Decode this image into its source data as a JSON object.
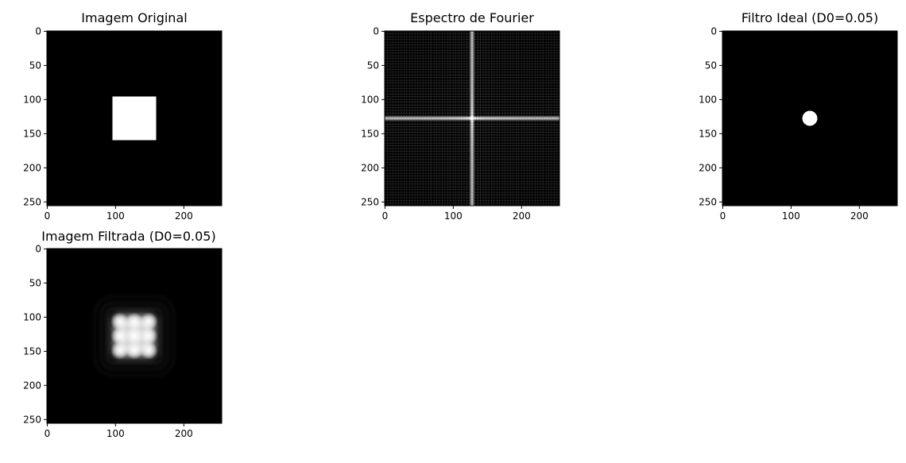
{
  "figure": {
    "background": "#ffffff"
  },
  "chart_data": [
    {
      "type": "heatmap",
      "id": "original",
      "title": "Imagem Original",
      "colormap": "gray",
      "image_size": [
        256,
        256
      ],
      "xlim": [
        0,
        255
      ],
      "ylim": [
        255,
        0
      ],
      "xticks": [
        0,
        100,
        200
      ],
      "yticks": [
        0,
        50,
        100,
        150,
        200,
        250
      ],
      "content": {
        "kind": "square",
        "x_range": [
          96,
          160
        ],
        "y_range": [
          96,
          160
        ],
        "value": 1.0
      }
    },
    {
      "type": "heatmap",
      "id": "spectrum",
      "title": "Espectro de Fourier",
      "colormap": "gray",
      "image_size": [
        256,
        256
      ],
      "xlim": [
        0,
        255
      ],
      "ylim": [
        255,
        0
      ],
      "xticks": [
        0,
        100,
        200
      ],
      "yticks": [
        0,
        50,
        100,
        150,
        200,
        250
      ],
      "content": {
        "kind": "sinc-cross",
        "center": [
          128,
          128
        ],
        "grid_period": 4
      }
    },
    {
      "type": "heatmap",
      "id": "ideal-filter",
      "title": "Filtro Ideal (D0=0.05)",
      "colormap": "gray",
      "image_size": [
        256,
        256
      ],
      "xlim": [
        0,
        255
      ],
      "ylim": [
        255,
        0
      ],
      "xticks": [
        0,
        100,
        200
      ],
      "yticks": [
        0,
        50,
        100,
        150,
        200,
        250
      ],
      "content": {
        "kind": "disk",
        "center": [
          128,
          128
        ],
        "radius": 11,
        "value": 1.0
      }
    },
    {
      "type": "heatmap",
      "id": "filtered",
      "title": "Imagem Filtrada (D0=0.05)",
      "colormap": "gray",
      "image_size": [
        256,
        256
      ],
      "xlim": [
        0,
        255
      ],
      "ylim": [
        255,
        0
      ],
      "xticks": [
        0,
        100,
        200
      ],
      "yticks": [
        0,
        50,
        100,
        150,
        200,
        250
      ],
      "content": {
        "kind": "blurred-square",
        "x_range": [
          96,
          160
        ],
        "y_range": [
          96,
          160
        ],
        "ripple_blobs": 3
      }
    }
  ]
}
